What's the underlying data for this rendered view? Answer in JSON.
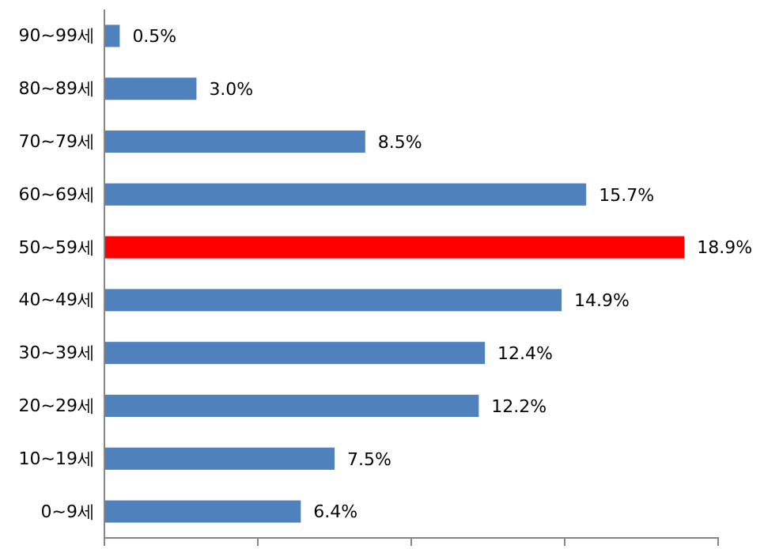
{
  "chart_data": {
    "type": "bar",
    "orientation": "horizontal",
    "categories": [
      "90~99세",
      "80~89세",
      "70~79세",
      "60~69세",
      "50~59세",
      "40~49세",
      "30~39세",
      "20~29세",
      "10~19세",
      "0~9세"
    ],
    "values": [
      0.5,
      3.0,
      8.5,
      15.7,
      18.9,
      14.9,
      12.4,
      12.2,
      7.5,
      6.4
    ],
    "colors": [
      "#4f81bd",
      "#4f81bd",
      "#4f81bd",
      "#4f81bd",
      "#ff0000",
      "#4f81bd",
      "#4f81bd",
      "#4f81bd",
      "#4f81bd",
      "#4f81bd"
    ],
    "value_labels": [
      "0.5%",
      "3.0%",
      "8.5%",
      "15.7%",
      "18.9%",
      "14.9%",
      "12.4%",
      "12.2%",
      "7.5%",
      "6.4%"
    ],
    "xlim": [
      0,
      20
    ],
    "xticks": [
      {
        "value": 0,
        "label": null
      },
      {
        "value": 5,
        "label": null
      },
      {
        "value": 10,
        "label": null
      },
      {
        "value": 15,
        "label": null
      },
      {
        "value": 20,
        "label": null
      }
    ],
    "tick_labels": "y",
    "grid": false
  }
}
